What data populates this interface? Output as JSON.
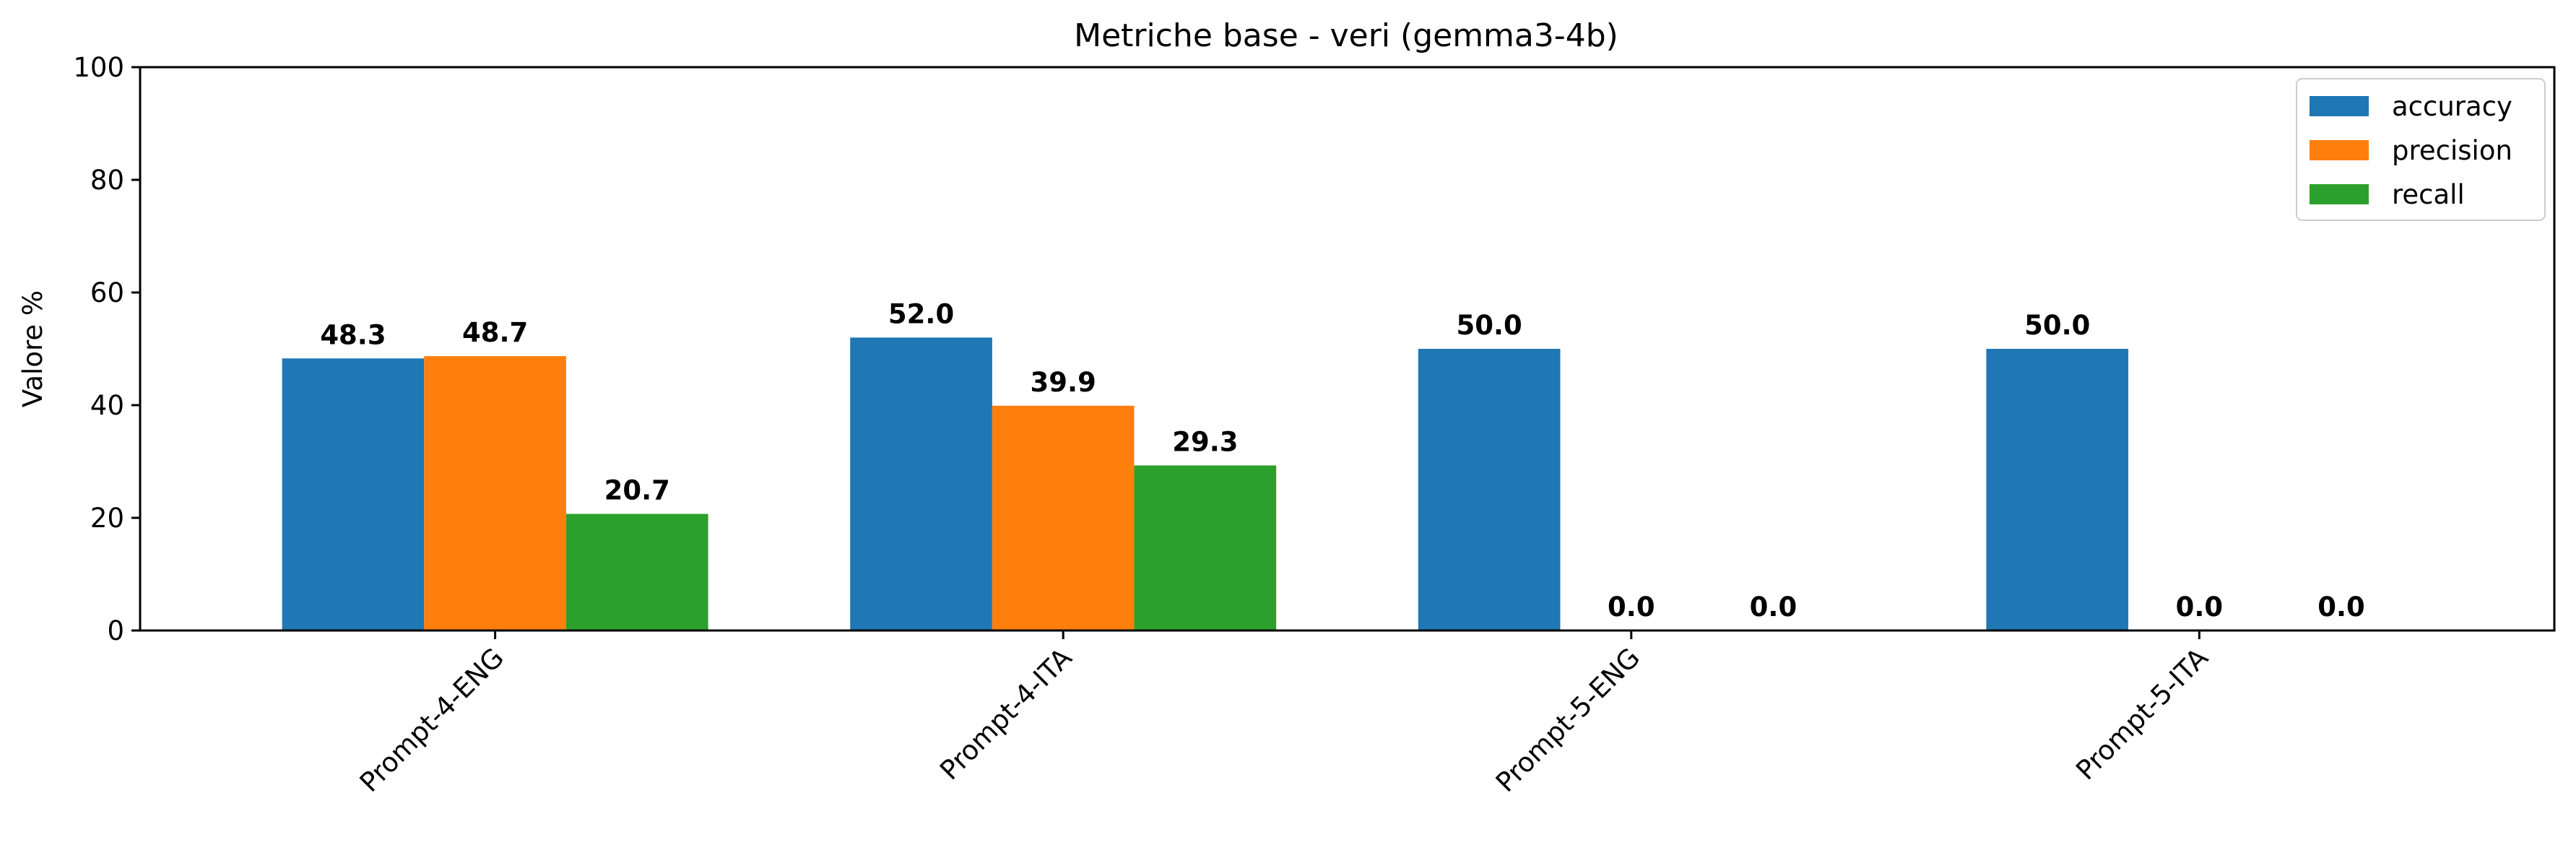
{
  "chart_data": {
    "type": "bar",
    "title": "Metriche base - veri (gemma3-4b)",
    "xlabel": "",
    "ylabel": "Valore %",
    "ylim": [
      0,
      100
    ],
    "yticks": [
      0,
      20,
      40,
      60,
      80,
      100
    ],
    "grid": false,
    "legend_position": "top-right",
    "categories": [
      "Prompt-4-ENG",
      "Prompt-4-ITA",
      "Prompt-5-ENG",
      "Prompt-5-ITA"
    ],
    "series": [
      {
        "name": "accuracy",
        "color": "#1f77b4",
        "values": [
          48.3,
          52.0,
          50.0,
          50.0
        ],
        "labels": [
          "48.3",
          "52.0",
          "50.0",
          "50.0"
        ]
      },
      {
        "name": "precision",
        "color": "#ff7f0e",
        "values": [
          48.7,
          39.9,
          0.0,
          0.0
        ],
        "labels": [
          "48.7",
          "39.9",
          "0.0",
          "0.0"
        ]
      },
      {
        "name": "recall",
        "color": "#2ca02c",
        "values": [
          20.7,
          29.3,
          0.0,
          0.0
        ],
        "labels": [
          "20.7",
          "29.3",
          "0.0",
          "0.0"
        ]
      }
    ]
  }
}
